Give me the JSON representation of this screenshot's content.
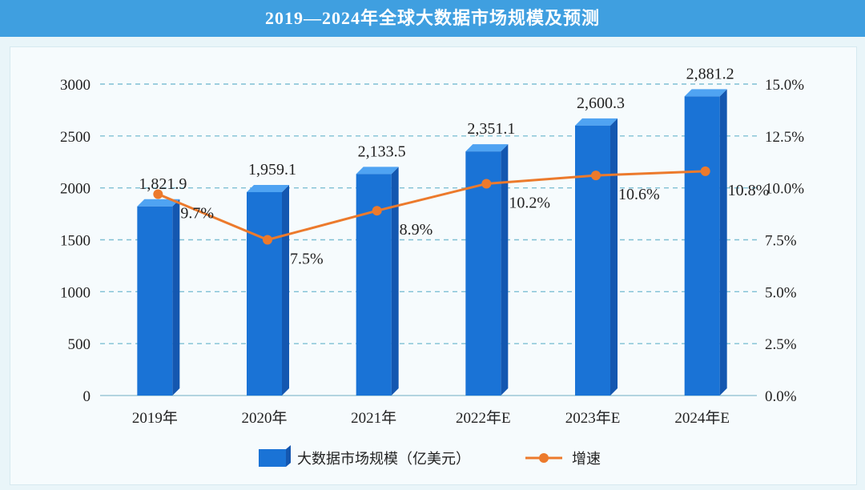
{
  "header": {
    "title": "2019—2024年全球大数据市场规模及预测"
  },
  "chart_data": {
    "type": "bar",
    "categories": [
      "2019年",
      "2020年",
      "2021年",
      "2022年E",
      "2023年E",
      "2024年E"
    ],
    "series": [
      {
        "name": "大数据市场规模（亿美元）",
        "type": "bar",
        "axis": "left",
        "values": [
          1821.9,
          1959.1,
          2133.5,
          2351.1,
          2600.3,
          2881.2
        ],
        "labels": [
          "1,821.9",
          "1,959.1",
          "2,133.5",
          "2,351.1",
          "2,600.3",
          "2,881.2"
        ],
        "color": "#1a73d6"
      },
      {
        "name": "增速",
        "type": "line",
        "axis": "right",
        "values": [
          9.7,
          7.5,
          8.9,
          10.2,
          10.6,
          10.8
        ],
        "labels": [
          "9.7%",
          "7.5%",
          "8.9%",
          "10.2%",
          "10.6%",
          "10.8%"
        ],
        "color": "#ec7a2c"
      }
    ],
    "ylim_left": [
      0,
      3000
    ],
    "yticks_left": [
      "0",
      "500",
      "1000",
      "1500",
      "2000",
      "2500",
      "3000"
    ],
    "ylim_right": [
      0,
      15
    ],
    "yticks_right": [
      "0.0%",
      "2.5%",
      "5.0%",
      "7.5%",
      "10.0%",
      "12.5%",
      "15.0%"
    ],
    "grid": true,
    "legend": "bottom"
  }
}
